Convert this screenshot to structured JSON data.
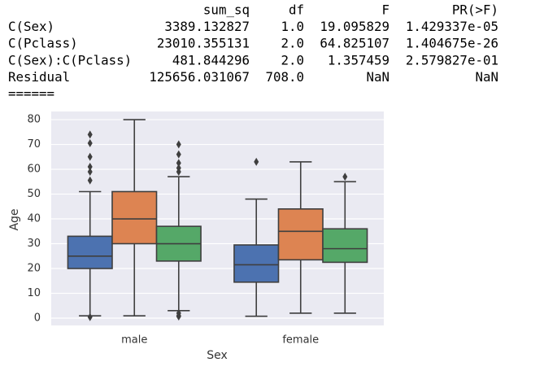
{
  "table": {
    "columns": [
      "sum_sq",
      "df",
      "F",
      "PR(>F)"
    ],
    "rows": [
      [
        "C(Sex)",
        "3389.132827",
        "1.0",
        "19.095829",
        "1.429337e-05"
      ],
      [
        "C(Pclass)",
        "23010.355131",
        "2.0",
        "64.825107",
        "1.404675e-26"
      ],
      [
        "C(Sex):C(Pclass)",
        "481.844296",
        "2.0",
        "1.357459",
        "2.579827e-01"
      ],
      [
        "Residual",
        "125656.031067",
        "708.0",
        "NaN",
        "NaN"
      ]
    ],
    "separator": "======"
  },
  "chart_data": {
    "type": "box",
    "xlabel": "Sex",
    "ylabel": "Age",
    "categories": [
      "male",
      "female"
    ],
    "ylim": [
      -2.95,
      83.3
    ],
    "yticks": [
      0,
      10,
      20,
      30,
      40,
      50,
      60,
      70,
      80
    ],
    "grid": true,
    "series": [
      {
        "color": "#4c72b0",
        "boxes": [
          {
            "whislo": 0.92,
            "q1": 20,
            "med": 25,
            "q3": 33,
            "whishi": 51,
            "fliers": [
              0.42,
              55.5,
              59,
              61,
              65,
              70.5,
              74
            ]
          },
          {
            "whislo": 0.75,
            "q1": 14.5,
            "med": 21.5,
            "q3": 29.5,
            "whishi": 48,
            "fliers": [
              63
            ]
          }
        ]
      },
      {
        "color": "#dd8452",
        "boxes": [
          {
            "whislo": 0.92,
            "q1": 30,
            "med": 40,
            "q3": 51,
            "whishi": 80,
            "fliers": []
          },
          {
            "whislo": 2,
            "q1": 23.5,
            "med": 35,
            "q3": 44,
            "whishi": 63,
            "fliers": []
          }
        ]
      },
      {
        "color": "#55a868",
        "boxes": [
          {
            "whislo": 3,
            "q1": 23,
            "med": 30,
            "q3": 37,
            "whishi": 57,
            "fliers": [
              0.67,
              1,
              2,
              59,
              60.5,
              62.5,
              66,
              70
            ]
          },
          {
            "whislo": 2,
            "q1": 22.5,
            "med": 28,
            "q3": 36,
            "whishi": 55,
            "fliers": [
              57
            ]
          }
        ]
      }
    ]
  }
}
